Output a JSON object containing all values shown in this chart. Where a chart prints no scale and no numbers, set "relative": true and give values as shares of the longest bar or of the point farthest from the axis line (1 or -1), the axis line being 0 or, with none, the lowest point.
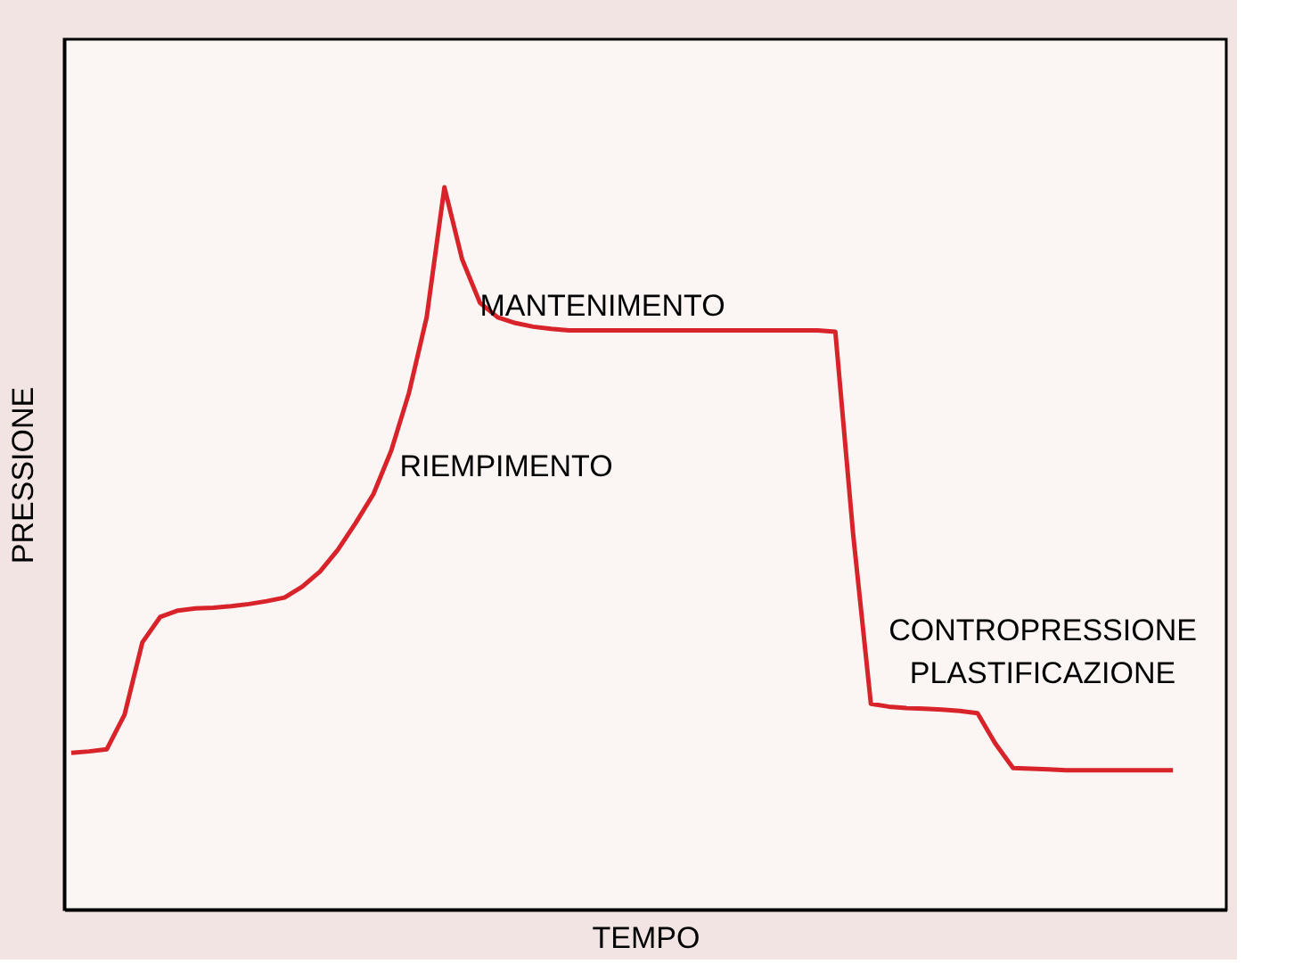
{
  "chart_data": {
    "type": "line",
    "relative": true,
    "xlabel": "TEMPO",
    "ylabel": "PRESSIONE",
    "color": "#d8232a",
    "categories": [
      null,
      null,
      null,
      null,
      null,
      null,
      null,
      null,
      null,
      null,
      null,
      null,
      null,
      null,
      null,
      null,
      null,
      null,
      null,
      null,
      null,
      null,
      null,
      null,
      null,
      null,
      null,
      null,
      null,
      null,
      null,
      null,
      null,
      null,
      null,
      null,
      null,
      null,
      null,
      null,
      null,
      null,
      null,
      null,
      null,
      null,
      null,
      null,
      null,
      null,
      null,
      null,
      null,
      null,
      null,
      null,
      null,
      null,
      null,
      null,
      null,
      null,
      null
    ],
    "values": [
      0.217,
      0.219,
      0.222,
      0.27,
      0.37,
      0.405,
      0.414,
      0.417,
      0.418,
      0.42,
      0.423,
      0.427,
      0.432,
      0.447,
      0.468,
      0.498,
      0.535,
      0.575,
      0.635,
      0.715,
      0.82,
      1.0,
      0.9,
      0.84,
      0.82,
      0.812,
      0.807,
      0.804,
      0.802,
      0.802,
      0.802,
      0.802,
      0.802,
      0.802,
      0.802,
      0.802,
      0.802,
      0.802,
      0.802,
      0.802,
      0.802,
      0.802,
      0.802,
      0.8,
      0.52,
      0.285,
      0.281,
      0.279,
      0.278,
      0.277,
      0.275,
      0.272,
      0.23,
      0.196,
      0.195,
      0.194,
      0.193,
      0.193,
      0.193,
      0.193,
      0.193,
      0.193,
      0.193
    ],
    "annotations": [
      "RIEMPIMENTO",
      "MANTENIMENTO",
      "CONTROPRESSIONE",
      "PLASTIFICAZIONE"
    ],
    "grid": false
  }
}
